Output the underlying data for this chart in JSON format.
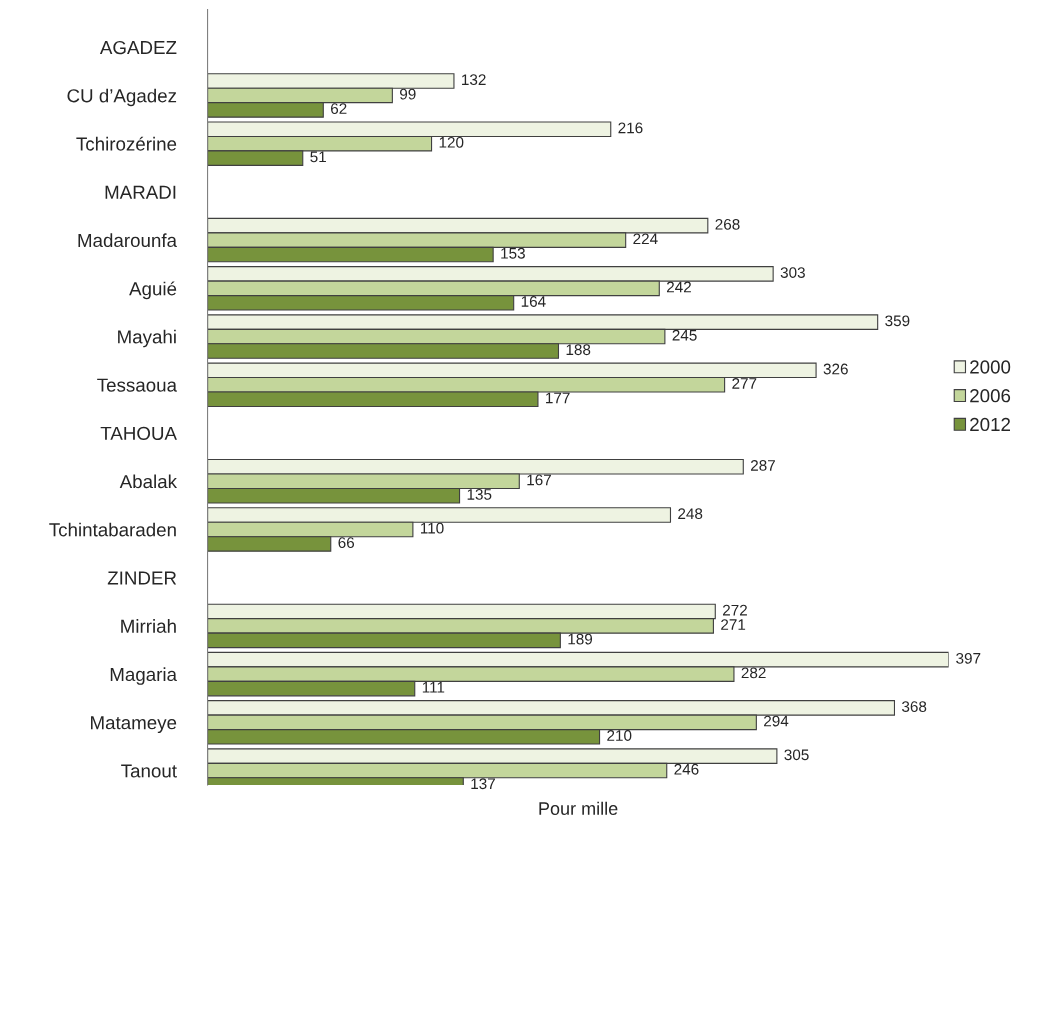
{
  "chart_data": {
    "type": "bar",
    "orientation": "horizontal",
    "xlabel": "Pour mille",
    "categories": [
      "AGADEZ",
      "CU d’Agadez",
      "Tchirozérine",
      "MARADI",
      "Madarounfa",
      "Aguié",
      "Mayahi",
      "Tessaoua",
      "TAHOUA",
      "Abalak",
      "Tchintabaraden",
      "ZINDER",
      "Mirriah",
      "Magaria",
      "Matameye",
      "Tanout"
    ],
    "series": [
      {
        "name": "2000",
        "color": "#eef3e2",
        "values": [
          null,
          132,
          216,
          null,
          268,
          303,
          359,
          326,
          null,
          287,
          248,
          null,
          272,
          397,
          368,
          305
        ]
      },
      {
        "name": "2006",
        "color": "#c3d69b",
        "values": [
          null,
          99,
          120,
          null,
          224,
          242,
          245,
          277,
          null,
          167,
          110,
          null,
          271,
          282,
          294,
          246
        ]
      },
      {
        "name": "2012",
        "color": "#77933c",
        "values": [
          null,
          62,
          51,
          null,
          153,
          164,
          188,
          177,
          null,
          135,
          66,
          null,
          189,
          111,
          210,
          137
        ]
      }
    ],
    "data_labels": true,
    "tick_labels": "y",
    "legend": "right",
    "grid": false
  }
}
